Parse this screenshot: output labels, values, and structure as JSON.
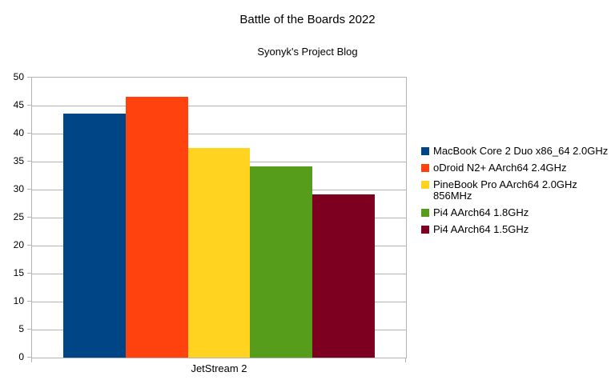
{
  "chart_data": {
    "type": "bar",
    "title": "Battle of the Boards 2022",
    "subtitle": "Syonyk's Project Blog",
    "categories": [
      "JetStream 2"
    ],
    "xlabel": "",
    "ylabel": "",
    "ylim": [
      0,
      50
    ],
    "yticks": [
      0,
      5,
      10,
      15,
      20,
      25,
      30,
      35,
      40,
      45,
      50
    ],
    "grid": true,
    "legend_position": "right",
    "axis_color": "#b3b3b3",
    "series": [
      {
        "name": "MacBook Core 2 Duo x86_64 2.0GHz",
        "name_lines": [
          "MacBook Core 2 Duo x86_64 2.0GHz"
        ],
        "value": 43.6,
        "color": "#004586"
      },
      {
        "name": "oDroid N2+ AArch64 2.4GHz",
        "name_lines": [
          "oDroid N2+ AArch64 2.4GHz"
        ],
        "value": 46.6,
        "color": "#ff420e"
      },
      {
        "name": "PineBook Pro AArch64 2.0GHz 856MHz",
        "name_lines": [
          "PineBook Pro AArch64 2.0GHz",
          "856MHz"
        ],
        "value": 37.5,
        "color": "#ffd320"
      },
      {
        "name": "Pi4 AArch64 1.8GHz",
        "name_lines": [
          "Pi4 AArch64 1.8GHz"
        ],
        "value": 34.2,
        "color": "#579d1c"
      },
      {
        "name": "Pi4 AArch64 1.5GHz",
        "name_lines": [
          "Pi4 AArch64 1.5GHz"
        ],
        "value": 29.2,
        "color": "#7e0021"
      }
    ]
  }
}
